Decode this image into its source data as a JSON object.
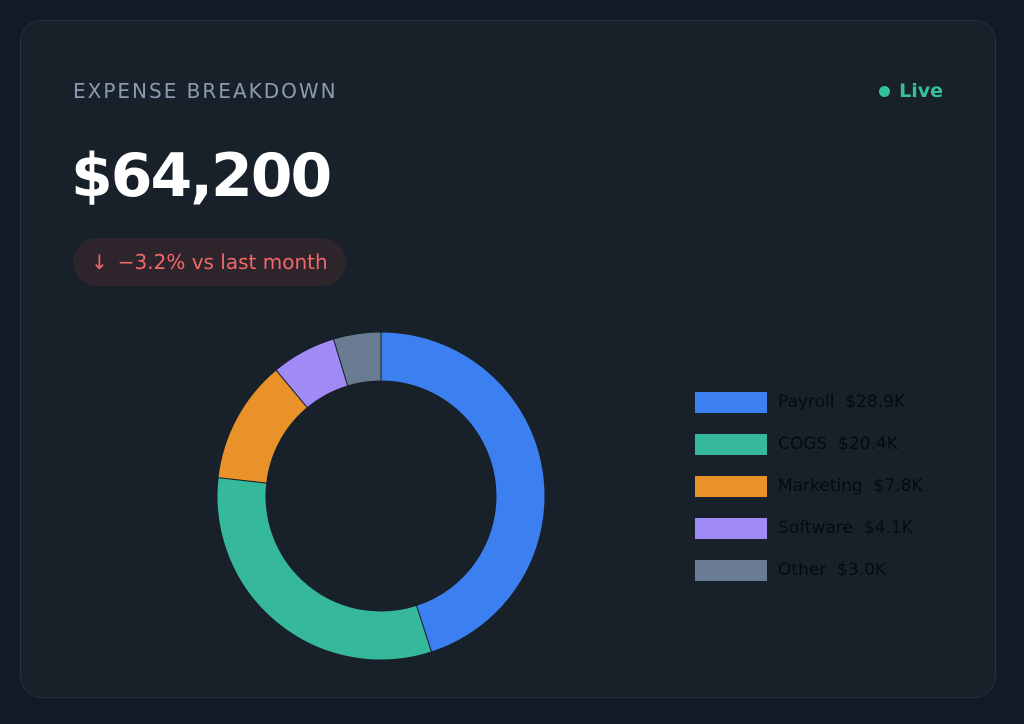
{
  "header": {
    "title": "EXPENSE BREAKDOWN",
    "live_label": "Live",
    "total": "$64,200",
    "delta_icon": "↓",
    "delta_text": "−3.2% vs last month"
  },
  "colors": {
    "live": "#34c09a",
    "delta": "#f2676a"
  },
  "chart_data": {
    "type": "pie",
    "donut": true,
    "unit": "$K",
    "categories": [
      "Payroll",
      "COGS",
      "Marketing",
      "Software",
      "Other"
    ],
    "values": [
      28.9,
      20.4,
      7.8,
      4.1,
      3.0
    ],
    "colors": [
      "#3b7ff0",
      "#35b99a",
      "#ea922a",
      "#a08af5",
      "#6a7c93"
    ],
    "legend_position": "right",
    "legend": [
      {
        "label": "Payroll",
        "value": "$28.9K",
        "color": "#3b7ff0"
      },
      {
        "label": "COGS",
        "value": "$20.4K",
        "color": "#35b99a"
      },
      {
        "label": "Marketing",
        "value": "$7.8K",
        "color": "#ea922a"
      },
      {
        "label": "Software",
        "value": "$4.1K",
        "color": "#a08af5"
      },
      {
        "label": "Other",
        "value": "$3.0K",
        "color": "#6a7c93"
      }
    ]
  }
}
